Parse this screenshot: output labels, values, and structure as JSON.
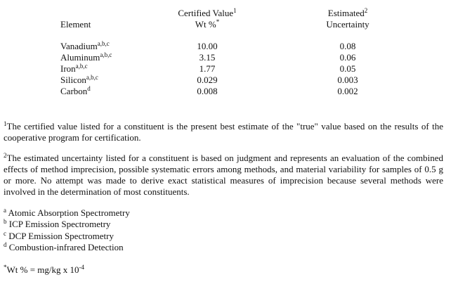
{
  "table": {
    "headers": {
      "element": "Element",
      "certified_line1": "Certified Value",
      "certified_line1_sup": "1",
      "certified_line2": "Wt %",
      "certified_line2_sup": "*",
      "estimated_line1": "Estimated",
      "estimated_line1_sup": "2",
      "estimated_line2": "Uncertainty"
    },
    "rows": [
      {
        "element": "Vanadium",
        "sup": "a,b,c",
        "value": "10.00",
        "uncertainty": "0.08"
      },
      {
        "element": "Aluminum",
        "sup": "a,b,c",
        "value": "3.15",
        "uncertainty": "0.06"
      },
      {
        "element": "Iron",
        "sup": "a,b,c",
        "value": "1.77",
        "uncertainty": "0.05"
      },
      {
        "element": "Silicon",
        "sup": "a,b,c",
        "value": "0.029",
        "uncertainty": "0.003"
      },
      {
        "element": "Carbon",
        "sup": "d",
        "value": "0.008",
        "uncertainty": "0.002"
      }
    ]
  },
  "notes": {
    "note1_mark": "1",
    "note1": "The certified value listed for a constituent is the present best estimate of the \"true\" value based on the results of the cooperative program for certification.",
    "note2_mark": "2",
    "note2": "The estimated uncertainty listed for a constituent is based on judgment and represents an evaluation of the combined effects of method imprecision, possible systematic errors among methods, and material variability for samples of 0.5 g or more.  No attempt was made to derive exact statistical measures of imprecision because several methods were involved in the determination of most constituents."
  },
  "methods": [
    {
      "mark": "a",
      "label": "Atomic Absorption Spectrometry"
    },
    {
      "mark": "b",
      "label": "ICP Emission Spectrometry"
    },
    {
      "mark": "c",
      "label": "DCP Emission Spectrometry"
    },
    {
      "mark": "d",
      "label": "Combustion-infrared Detection"
    }
  ],
  "unit_note": {
    "mark": "*",
    "text": "Wt %  =  mg/kg x 10",
    "exponent": "-4"
  }
}
